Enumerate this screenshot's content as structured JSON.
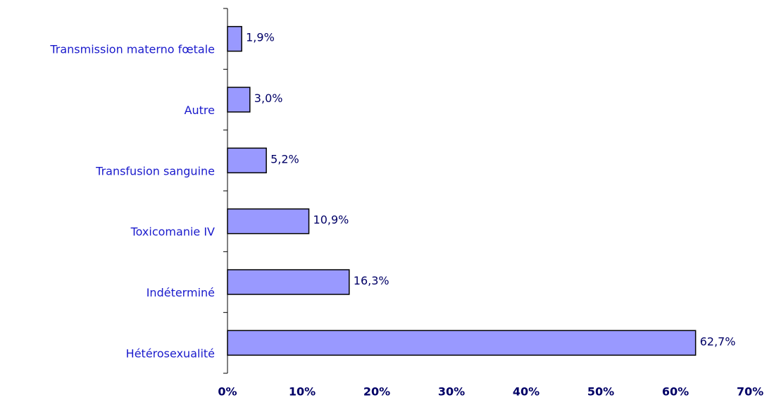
{
  "chart_data": {
    "type": "bar",
    "orientation": "horizontal",
    "categories": [
      "Transmission materno fœtale",
      "Autre",
      "Transfusion sanguine",
      "Toxicomanie IV",
      "Indéterminé",
      "Hétérosexualité"
    ],
    "values": [
      1.9,
      3.0,
      5.2,
      10.9,
      16.3,
      62.7
    ],
    "value_labels": [
      "1,9%",
      "3,0%",
      "5,2%",
      "10,9%",
      "16,3%",
      "62,7%"
    ],
    "color": "#9999ff",
    "xlim": [
      0,
      70
    ],
    "xticks": [
      {
        "value": 0,
        "label": "0%"
      },
      {
        "value": 10,
        "label": "10%"
      },
      {
        "value": 20,
        "label": "20%"
      },
      {
        "value": 30,
        "label": "30%"
      },
      {
        "value": 40,
        "label": "40%"
      },
      {
        "value": 50,
        "label": "50%"
      },
      {
        "value": 60,
        "label": "60%"
      },
      {
        "value": 70,
        "label": "70%"
      }
    ],
    "grid": false
  }
}
